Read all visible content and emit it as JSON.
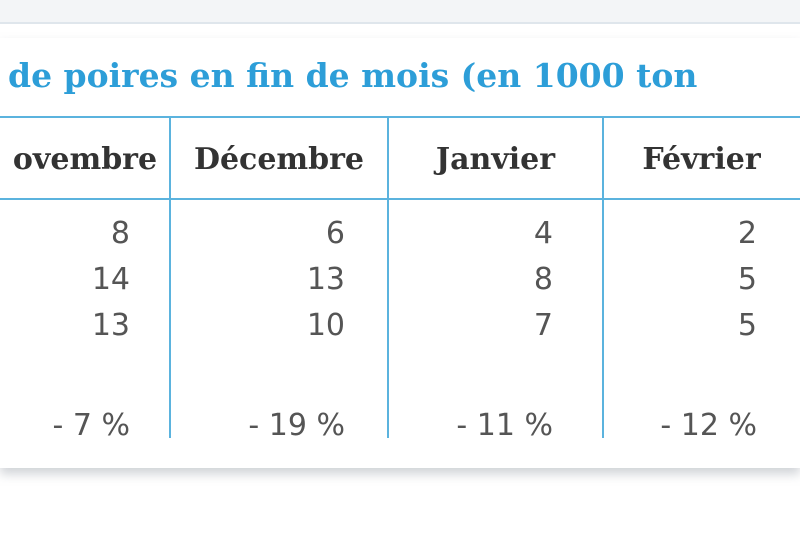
{
  "title": "de poires en fin de mois (en 1000 ton",
  "table": {
    "header": [
      "ovembre",
      "Décembre",
      "Janvier",
      "Février"
    ],
    "rows": [
      [
        8,
        6,
        4,
        2
      ],
      [
        14,
        13,
        8,
        5
      ],
      [
        13,
        10,
        7,
        5
      ]
    ],
    "change": [
      "- 7 %",
      "- 19 %",
      "- 11 %",
      "- 12 %"
    ]
  }
}
